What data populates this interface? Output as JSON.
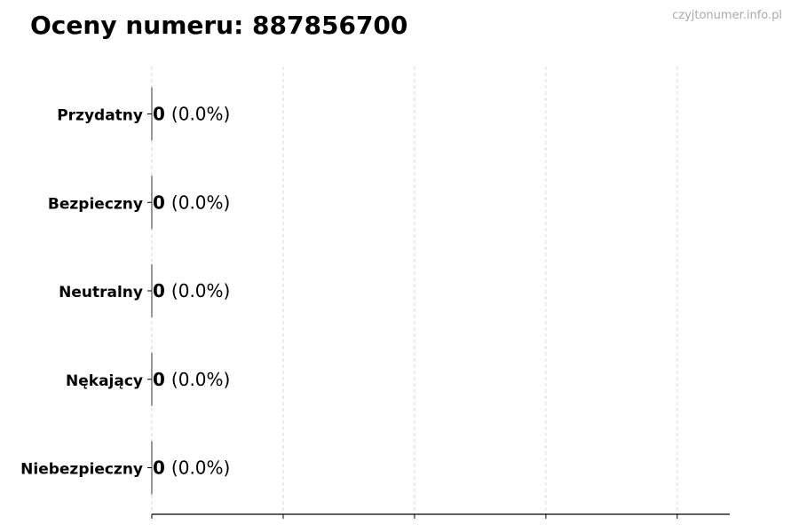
{
  "title": "Oceny numeru: 887856700",
  "watermark": "czyjtonumer.info.pl",
  "chart_data": {
    "type": "bar",
    "orientation": "horizontal",
    "title": "Oceny numeru: 887856700",
    "categories": [
      "Przydatny",
      "Bezpieczny",
      "Neutralny",
      "Nękający",
      "Niebezpieczny"
    ],
    "values": [
      0,
      0,
      0,
      0,
      0
    ],
    "data_labels": [
      "0 (0.0%)",
      "0 (0.0%)",
      "0 (0.0%)",
      "0 (0.0%)",
      "0 (0.0%)"
    ],
    "value_labels": [
      "0",
      "0",
      "0",
      "0",
      "0"
    ],
    "percent_labels": [
      "(0.0%)",
      "(0.0%)",
      "(0.0%)",
      "(0.0%)",
      "(0.0%)"
    ],
    "xlabel": "",
    "ylabel": "",
    "xlim": [
      0,
      4.4
    ],
    "xticks": [
      0,
      1,
      2,
      3,
      4
    ],
    "xtick_labels_shown": false,
    "grid": "vertical dashed",
    "colors": {
      "bar_edge": "#333333",
      "grid": "#d9d9d9",
      "axis": "#000000",
      "watermark": "#aaaaaa"
    }
  }
}
